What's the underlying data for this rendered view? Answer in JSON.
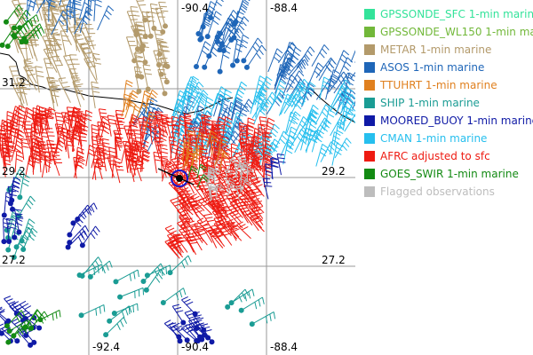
{
  "map": {
    "lon_labels": {
      "top": [
        "-90.4",
        "-88.4"
      ],
      "bottom": [
        "-92.4",
        "-90.4",
        "-88.4"
      ]
    },
    "lat_labels": {
      "left": [
        "31.2",
        "29.2",
        "27.2"
      ],
      "right": [
        "29.2",
        "27.2"
      ]
    }
  },
  "legend": {
    "items": [
      {
        "label": "GPSSONDE_SFC 1-min marine",
        "color": "#33e39a"
      },
      {
        "label": "GPSSONDE_WL150 1-min marine",
        "color": "#72b83a"
      },
      {
        "label": "METAR 1-min marine",
        "color": "#b39a6b"
      },
      {
        "label": "ASOS 1-min marine",
        "color": "#1f66b8"
      },
      {
        "label": "TTUHRT 1-min marine",
        "color": "#e0801f"
      },
      {
        "label": "SHIP 1-min marine",
        "color": "#1a9c94"
      },
      {
        "label": "MOORED_BUOY 1-min marine",
        "color": "#0f1aa6"
      },
      {
        "label": "CMAN 1-min marine",
        "color": "#26bfee"
      },
      {
        "label": "AFRC adjusted to sfc",
        "color": "#ee1b12"
      },
      {
        "label": "GOES_SWIR 1-min marine",
        "color": "#138a13"
      },
      {
        "label": "Flagged observations",
        "color": "#bdbdbd"
      }
    ]
  }
}
